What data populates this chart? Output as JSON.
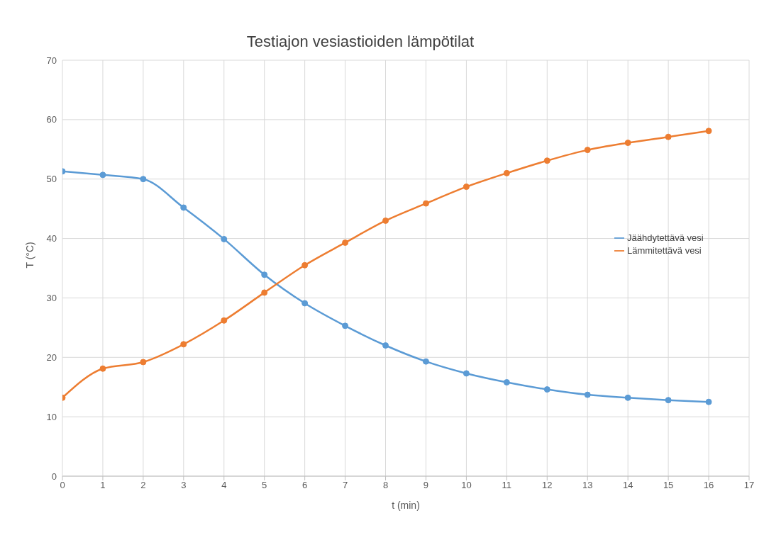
{
  "chart_data": {
    "type": "line",
    "title": "Testiajon vesiastioiden lämpötilat",
    "xlabel": "t (min)",
    "ylabel": "T  (°C)",
    "x": [
      0,
      1,
      2,
      3,
      4,
      5,
      6,
      7,
      8,
      9,
      10,
      11,
      12,
      13,
      14,
      15,
      16
    ],
    "series": [
      {
        "name": "Jäähdytettävä vesi",
        "color": "#5b9bd5",
        "values": [
          51.3,
          50.7,
          50,
          45.2,
          39.9,
          33.9,
          29.1,
          25.3,
          22,
          19.3,
          17.3,
          15.8,
          14.6,
          13.7,
          13.2,
          12.8,
          12.5
        ]
      },
      {
        "name": "Lämmitettävä vesi",
        "color": "#ed7d31",
        "values": [
          13.2,
          18.1,
          19.2,
          22.2,
          26.2,
          30.9,
          35.5,
          39.3,
          43,
          45.9,
          48.7,
          51,
          53.1,
          54.9,
          56.1,
          57.1,
          58.1
        ]
      }
    ],
    "xlim": [
      0,
      17
    ],
    "xticks": [
      0,
      1,
      2,
      3,
      4,
      5,
      6,
      7,
      8,
      9,
      10,
      11,
      12,
      13,
      14,
      15,
      16,
      17
    ],
    "ylim": [
      0,
      70
    ],
    "yticks": [
      0,
      10,
      20,
      30,
      40,
      50,
      60,
      70
    ],
    "grid": true,
    "legend": "right",
    "marker": "circle",
    "line_style": "solid"
  }
}
